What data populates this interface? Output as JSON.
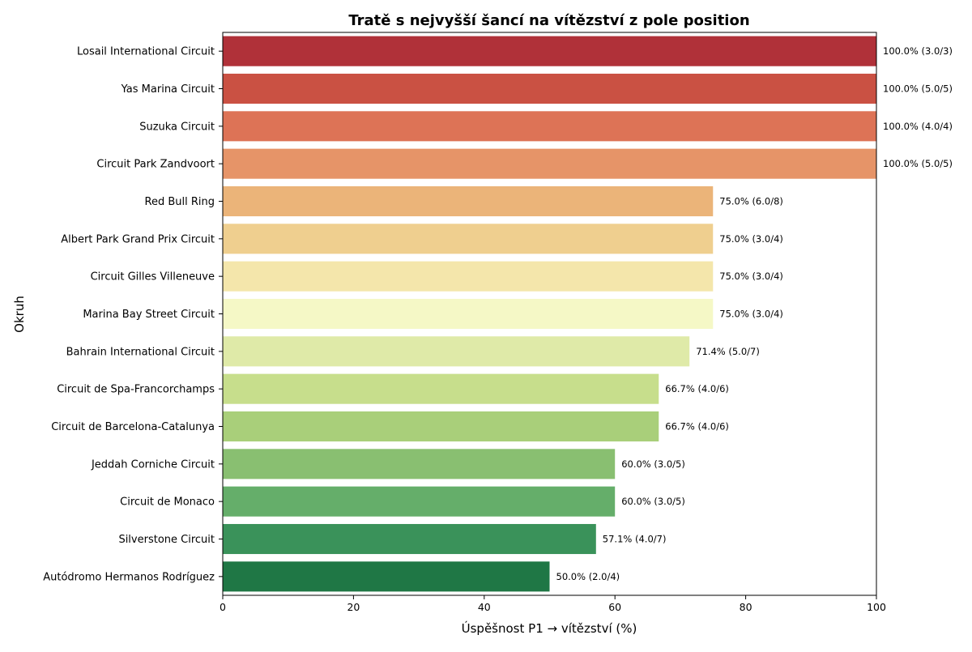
{
  "chart_data": {
    "type": "bar",
    "orientation": "horizontal",
    "title": "Tratě s nejvyšší šancí na vítězství z pole position",
    "xlabel": "Úspěšnost P1 → vítězství (%)",
    "ylabel": "Okruh",
    "xlim": [
      0,
      100
    ],
    "xticks": [
      "0",
      "20",
      "40",
      "60",
      "80",
      "100"
    ],
    "grid": false,
    "legend": "none",
    "categories": [
      "Losail International Circuit",
      "Yas Marina Circuit",
      "Suzuka Circuit",
      "Circuit Park Zandvoort",
      "Red Bull Ring",
      "Albert Park Grand Prix Circuit",
      "Circuit Gilles Villeneuve",
      "Marina Bay Street Circuit",
      "Bahrain International Circuit",
      "Circuit de Spa-Francorchamps",
      "Circuit de Barcelona-Catalunya",
      "Jeddah Corniche Circuit",
      "Circuit de Monaco",
      "Silverstone Circuit",
      "Autódromo Hermanos Rodríguez"
    ],
    "values": [
      100.0,
      100.0,
      100.0,
      100.0,
      75.0,
      75.0,
      75.0,
      75.0,
      71.4,
      66.7,
      66.7,
      60.0,
      60.0,
      57.1,
      50.0
    ],
    "data_labels": [
      "100.0% (3.0/3)",
      "100.0% (5.0/5)",
      "100.0% (4.0/4)",
      "100.0% (5.0/5)",
      "75.0% (6.0/8)",
      "75.0% (3.0/4)",
      "75.0% (3.0/4)",
      "75.0% (3.0/4)",
      "71.4% (5.0/7)",
      "66.7% (4.0/6)",
      "66.7% (4.0/6)",
      "60.0% (3.0/5)",
      "60.0% (3.0/5)",
      "57.1% (4.0/7)",
      "50.0% (2.0/4)"
    ],
    "colors": [
      "#b03139",
      "#ca5143",
      "#dd7356",
      "#e69468",
      "#ebb479",
      "#efcf8f",
      "#f4e6ab",
      "#f5f8c6",
      "#dfeaa8",
      "#c7de8c",
      "#a9cf7a",
      "#89bf71",
      "#65ae6a",
      "#3a925a",
      "#1f7745"
    ]
  }
}
